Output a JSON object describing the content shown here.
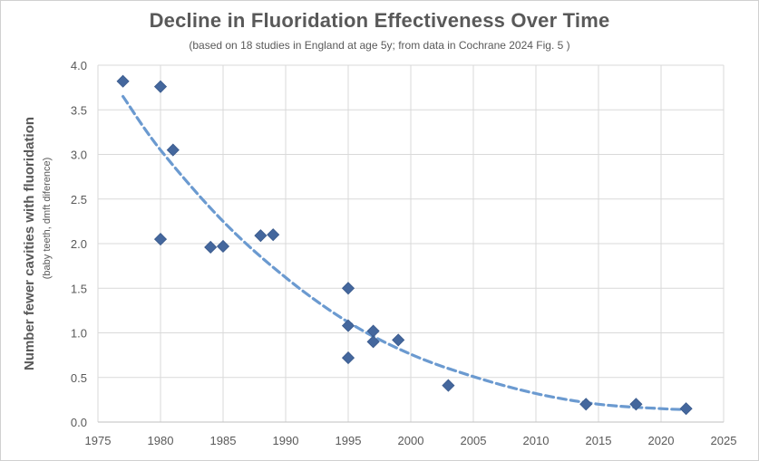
{
  "chart_data": {
    "type": "scatter",
    "title": "Decline in Fluoridation Effectiveness Over Time",
    "subtitle": "(based on 18 studies in England at age 5y; from data in Cochrane 2024 Fig. 5 )",
    "ylabel": "Number fewer cavities with fluoridation",
    "ylabel_sub": "(baby teeth, dmft diference)",
    "xlabel": "",
    "xlim": [
      1975,
      2025
    ],
    "ylim": [
      0.0,
      4.0
    ],
    "x_ticks": [
      "1975",
      "1980",
      "1985",
      "1990",
      "1995",
      "2000",
      "2005",
      "2010",
      "2015",
      "2020",
      "2025"
    ],
    "x_tick_values": [
      1975,
      1980,
      1985,
      1990,
      1995,
      2000,
      2005,
      2010,
      2015,
      2020,
      2025
    ],
    "y_ticks": [
      "0.0",
      "0.5",
      "1.0",
      "1.5",
      "2.0",
      "2.5",
      "3.0",
      "3.5",
      "4.0"
    ],
    "y_tick_values": [
      0.0,
      0.5,
      1.0,
      1.5,
      2.0,
      2.5,
      3.0,
      3.5,
      4.0
    ],
    "grid": true,
    "legend": "none",
    "marker_color": "#44679d",
    "trend_color": "#6b9ad0",
    "points": [
      {
        "x": 1977,
        "y": 3.82
      },
      {
        "x": 1980,
        "y": 3.76
      },
      {
        "x": 1981,
        "y": 3.05
      },
      {
        "x": 1980,
        "y": 2.05
      },
      {
        "x": 1984,
        "y": 1.96
      },
      {
        "x": 1985,
        "y": 1.97
      },
      {
        "x": 1988,
        "y": 2.09
      },
      {
        "x": 1989,
        "y": 2.1
      },
      {
        "x": 1995,
        "y": 1.5
      },
      {
        "x": 1995,
        "y": 1.08
      },
      {
        "x": 1997,
        "y": 1.02
      },
      {
        "x": 1997,
        "y": 0.9
      },
      {
        "x": 1999,
        "y": 0.92
      },
      {
        "x": 1995,
        "y": 0.72
      },
      {
        "x": 2003,
        "y": 0.41
      },
      {
        "x": 2014,
        "y": 0.2
      },
      {
        "x": 2018,
        "y": 0.2
      },
      {
        "x": 2022,
        "y": 0.15
      }
    ],
    "trendline": {
      "type": "polynomial",
      "style": "dashed",
      "x": [
        1977,
        1980,
        1985,
        1990,
        1995,
        2000,
        2005,
        2010,
        2015,
        2020,
        2022
      ],
      "y": [
        3.65,
        3.05,
        2.25,
        1.62,
        1.12,
        0.76,
        0.51,
        0.32,
        0.2,
        0.15,
        0.14
      ]
    }
  }
}
